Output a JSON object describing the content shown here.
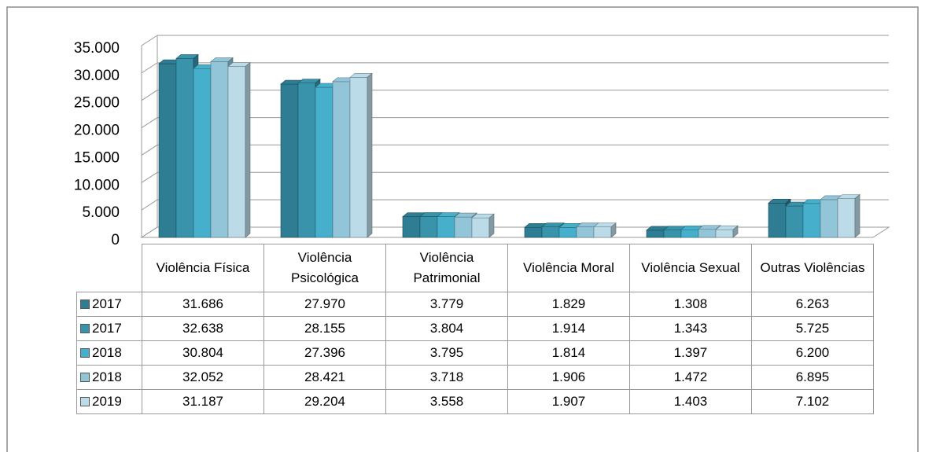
{
  "chart_data": {
    "type": "bar",
    "categories": [
      "Violência Física",
      "Violência Psicológica",
      "Violência Patrimonial",
      "Violência Moral",
      "Violência Sexual",
      "Outras Violências"
    ],
    "series": [
      {
        "name": "2017",
        "color": "#2f7d93",
        "values": [
          31686,
          27970,
          3779,
          1829,
          1308,
          6263
        ],
        "value_labels": [
          "31.686",
          "27.970",
          "3.779",
          "1.829",
          "1.308",
          "6.263"
        ]
      },
      {
        "name": "2017",
        "color": "#3893ab",
        "values": [
          32638,
          28155,
          3804,
          1914,
          1343,
          5725
        ],
        "value_labels": [
          "32.638",
          "28.155",
          "3.804",
          "1.914",
          "1.343",
          "5.725"
        ]
      },
      {
        "name": "2018",
        "color": "#45afcc",
        "values": [
          30804,
          27396,
          3795,
          1814,
          1397,
          6200
        ],
        "value_labels": [
          "30.804",
          "27.396",
          "3.795",
          "1.814",
          "1.397",
          "6.200"
        ]
      },
      {
        "name": "2018",
        "color": "#92c5d8",
        "values": [
          32052,
          28421,
          3718,
          1906,
          1472,
          6895
        ],
        "value_labels": [
          "32.052",
          "28.421",
          "3.718",
          "1.906",
          "1.472",
          "6.895"
        ]
      },
      {
        "name": "2019",
        "color": "#bcdbe8",
        "values": [
          31187,
          29204,
          3558,
          1907,
          1403,
          7102
        ],
        "value_labels": [
          "31.187",
          "29.204",
          "3.558",
          "1.907",
          "1.403",
          "7.102"
        ]
      }
    ],
    "ylim": [
      0,
      35000
    ],
    "yticks": [
      0,
      {
        "value": 5000,
        "label": "5.000"
      },
      {
        "value": 10000,
        "label": "10.000"
      },
      {
        "value": 15000,
        "label": "15.000"
      },
      {
        "value": 20000,
        "label": "20.000"
      },
      {
        "value": 25000,
        "label": "25.000"
      },
      {
        "value": 30000,
        "label": "30.000"
      },
      {
        "value": 35000,
        "label": "35.000"
      }
    ],
    "grid": true
  }
}
